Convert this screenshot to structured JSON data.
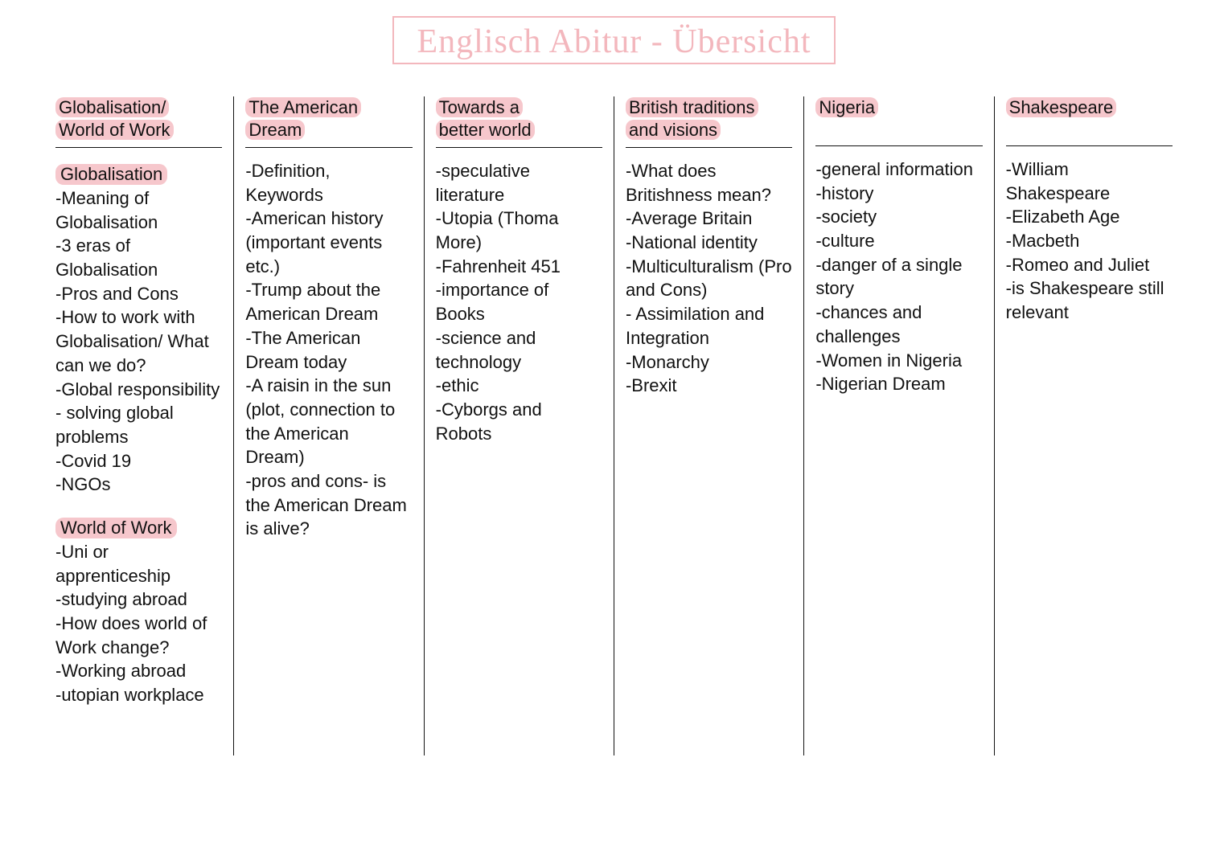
{
  "title": "Englisch Abitur - Übersicht",
  "highlight_color": "#f6c7cc",
  "title_color": "#f3b7bd",
  "text_color": "#111111",
  "background_color": "#ffffff",
  "font_size_body": 22,
  "font_size_title": 42,
  "columns": [
    {
      "header_lines": [
        "Globalisation/",
        "World of Work"
      ],
      "sections": [
        {
          "subheading": "Globalisation",
          "items": [
            "-Meaning of Globalisation",
            "-3 eras of Globalisation",
            "-Pros and Cons",
            "-How to work with Globalisation/ What can we do?",
            "-Global responsibility - solving global problems",
            "-Covid 19",
            "-NGOs"
          ]
        },
        {
          "subheading": "World of Work",
          "items": [
            "-Uni or apprenticeship",
            "-studying abroad",
            "-How does world of Work change?",
            "-Working abroad",
            "-utopian workplace"
          ]
        }
      ]
    },
    {
      "header_lines": [
        "The American",
        "Dream"
      ],
      "sections": [
        {
          "subheading": null,
          "items": [
            "-Definition, Keywords",
            "-American history (important events etc.)",
            "-Trump about the American Dream",
            "-The American Dream today",
            "-A raisin in the sun (plot, connection to the American Dream)",
            "-pros and cons- is the American Dream is alive?"
          ]
        }
      ]
    },
    {
      "header_lines": [
        "Towards a",
        "better world"
      ],
      "sections": [
        {
          "subheading": null,
          "items": [
            "-speculative literature",
            "-Utopia (Thoma More)",
            "-Fahrenheit 451",
            "-importance of Books",
            "-science and technology",
            "-ethic",
            "-Cyborgs and Robots"
          ]
        }
      ]
    },
    {
      "header_lines": [
        "British traditions",
        "and visions"
      ],
      "sections": [
        {
          "subheading": null,
          "items": [
            "-What does Britishness mean?",
            "-Average Britain",
            "-National identity",
            "-Multiculturalism (Pro and Cons)",
            "- Assimilation and Integration",
            "-Monarchy",
            "-Brexit"
          ]
        }
      ]
    },
    {
      "header_lines": [
        "Nigeria",
        ""
      ],
      "sections": [
        {
          "subheading": null,
          "items": [
            "-general information",
            "-history",
            "-society",
            "-culture",
            "-danger of a single story",
            "-chances and challenges",
            "-Women in Nigeria",
            "-Nigerian Dream"
          ]
        }
      ]
    },
    {
      "header_lines": [
        "Shakespeare",
        ""
      ],
      "sections": [
        {
          "subheading": null,
          "items": [
            "-William Shakespeare",
            "-Elizabeth Age",
            "-Macbeth",
            "-Romeo and Juliet",
            "-is Shakespeare still relevant"
          ]
        }
      ]
    }
  ]
}
